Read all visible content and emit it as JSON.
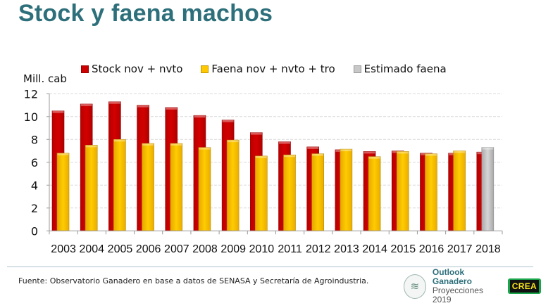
{
  "page": {
    "title": "Stock y faena machos",
    "source": "Fuente: Observatorio Ganadero en base a datos de SENASA y Secretaría de Agroindustria.",
    "logo": {
      "title": "Outlook Ganadero",
      "subtitle": "Proyecciones 2019",
      "brand": "CREA",
      "icon": "landscape-emblem-icon"
    }
  },
  "chart_data": {
    "type": "bar",
    "title": "Stock y faena machos",
    "xlabel": "",
    "ylabel": "Mill. cab",
    "ylim": [
      0,
      12
    ],
    "yticks": [
      0,
      2,
      4,
      6,
      8,
      10,
      12
    ],
    "grid": true,
    "legend_position": "top",
    "categories": [
      "2003",
      "2004",
      "2005",
      "2006",
      "2007",
      "2008",
      "2009",
      "2010",
      "2011",
      "2012",
      "2013",
      "2014",
      "2015",
      "2016",
      "2017",
      "2018"
    ],
    "series": [
      {
        "name": "Stock nov + nvto",
        "color": "#cc0000",
        "values": [
          10.5,
          11.1,
          11.3,
          11.0,
          10.8,
          10.1,
          9.7,
          8.6,
          7.8,
          7.35,
          7.1,
          6.95,
          7.0,
          6.8,
          6.8,
          6.9
        ]
      },
      {
        "name": "Faena nov + nvto + tro",
        "color": "#ffc800",
        "values": [
          6.8,
          7.5,
          8.0,
          7.65,
          7.65,
          7.3,
          7.95,
          6.55,
          6.65,
          6.75,
          7.15,
          6.5,
          6.95,
          6.75,
          7.0,
          null
        ]
      },
      {
        "name": "Estimado faena",
        "color": "#c8c8c8",
        "values": [
          null,
          null,
          null,
          null,
          null,
          null,
          null,
          null,
          null,
          null,
          null,
          null,
          null,
          null,
          null,
          7.3
        ]
      }
    ]
  }
}
